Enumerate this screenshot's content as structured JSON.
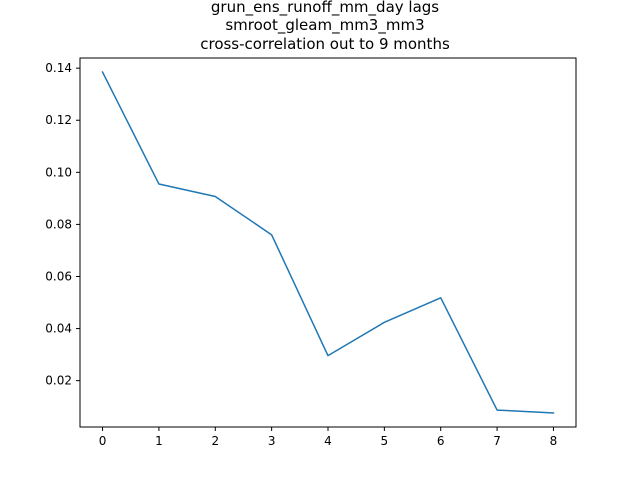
{
  "chart_data": {
    "type": "line",
    "title_lines": [
      "grun_ens_runoff_mm_day lags",
      "smroot_gleam_mm3_mm3",
      "cross-correlation out to 9 months"
    ],
    "xlabel": "",
    "ylabel": "",
    "x": [
      0,
      1,
      2,
      3,
      4,
      5,
      6,
      7,
      8
    ],
    "series": [
      {
        "values": [
          0.1385,
          0.0955,
          0.0907,
          0.076,
          0.0296,
          0.0424,
          0.0518,
          0.0087,
          0.0076
        ],
        "color": "#1f77b4"
      }
    ],
    "xlim": [
      -0.4,
      8.4
    ],
    "ylim": [
      0.0022,
      0.1439
    ],
    "xticks": [
      0,
      1,
      2,
      3,
      4,
      5,
      6,
      7,
      8
    ],
    "xtick_labels": [
      "0",
      "1",
      "2",
      "3",
      "4",
      "5",
      "6",
      "7",
      "8"
    ],
    "yticks": [
      0.02,
      0.04,
      0.06,
      0.08,
      0.1,
      0.12,
      0.14
    ],
    "ytick_labels": [
      "0.02",
      "0.04",
      "0.06",
      "0.08",
      "0.10",
      "0.12",
      "0.14"
    ],
    "grid": false,
    "legend": "none"
  }
}
